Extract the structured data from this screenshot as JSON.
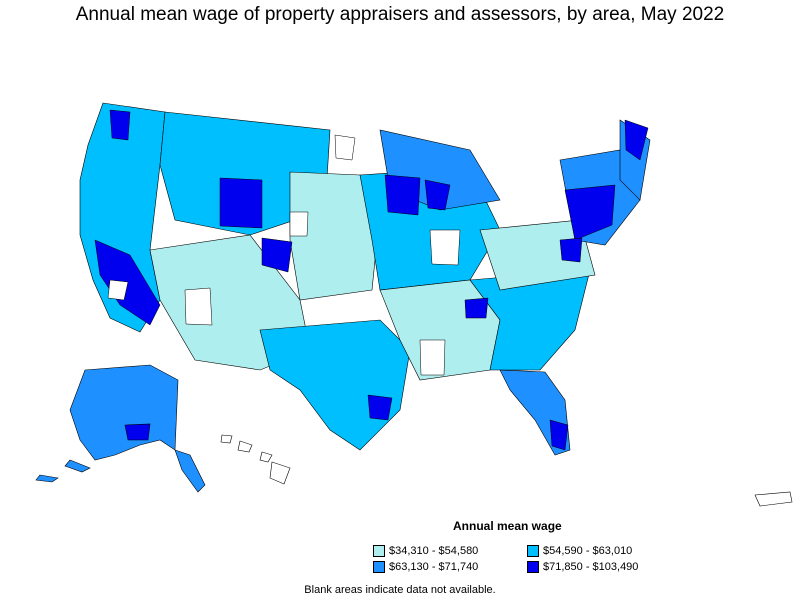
{
  "title": "Annual mean wage of property appraisers and assessors, by area, May 2022",
  "legend": {
    "title": "Annual mean wage",
    "items": [
      {
        "label": "$34,310 - $54,580",
        "color": "#aeeeee"
      },
      {
        "label": "$54,590 - $63,010",
        "color": "#00bfff"
      },
      {
        "label": "$63,130 - $71,740",
        "color": "#1e90ff"
      },
      {
        "label": "$71,850 - $103,490",
        "color": "#0000ee"
      }
    ]
  },
  "note": "Blank areas indicate data not available.",
  "colors": {
    "tier1": "#aeeeee",
    "tier2": "#00bfff",
    "tier3": "#1e90ff",
    "tier4": "#0000ee",
    "blank": "#ffffff",
    "outline": "#000000"
  }
}
